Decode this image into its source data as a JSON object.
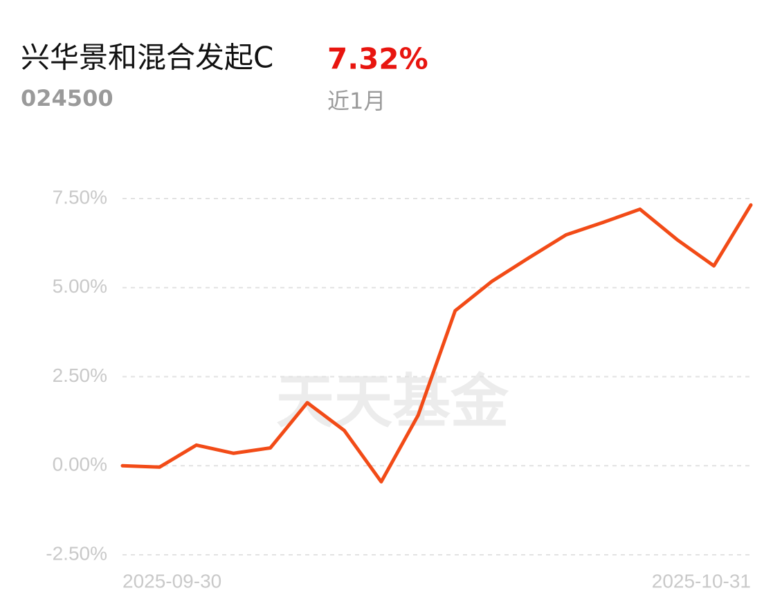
{
  "header": {
    "title": "兴华景和混合发起C",
    "code": "024500",
    "return": "7.32%",
    "period": "近1月"
  },
  "chart_data": {
    "type": "line",
    "watermark": "天天基金",
    "categories": [
      "2025-09-30",
      null,
      null,
      null,
      null,
      null,
      null,
      null,
      null,
      null,
      null,
      null,
      null,
      null,
      null,
      null,
      null,
      "2025-10-31"
    ],
    "values": [
      0.0,
      -0.04,
      0.58,
      0.35,
      0.5,
      1.77,
      0.99,
      -0.45,
      1.42,
      4.35,
      5.18,
      5.84,
      6.48,
      6.83,
      7.2,
      6.35,
      5.61,
      7.32
    ],
    "color": "#f24b17",
    "ylim": [
      -2.5,
      7.5
    ],
    "yticks": [
      {
        "value": 7.5,
        "label": "7.50%"
      },
      {
        "value": 5,
        "label": "5.00%"
      },
      {
        "value": 2.5,
        "label": "2.50%"
      },
      {
        "value": 0,
        "label": "0.00%"
      },
      {
        "value": -2.5,
        "label": "-2.50%"
      }
    ],
    "grid": true
  }
}
